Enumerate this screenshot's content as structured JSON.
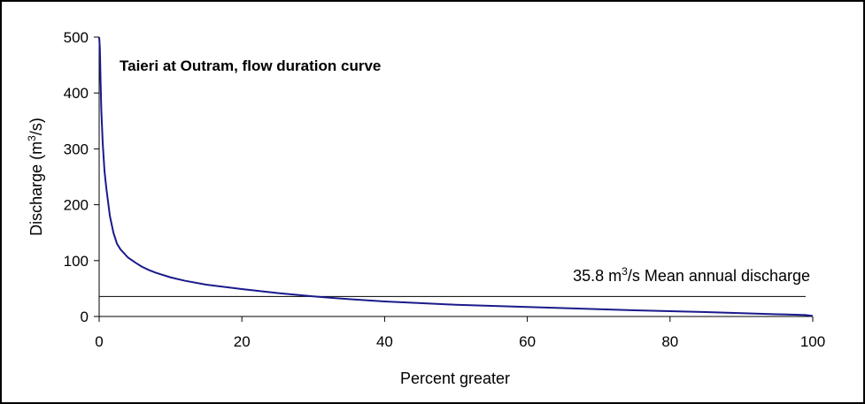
{
  "chart_data": {
    "type": "line",
    "title": "Taieri at Outram, flow duration curve",
    "xlabel": "Percent greater",
    "ylabel": {
      "prefix": "Discharge (m",
      "superscript": "3",
      "suffix": "/s)"
    },
    "xlim": [
      0,
      100
    ],
    "ylim": [
      0,
      500
    ],
    "x_ticks": [
      "0",
      "20",
      "40",
      "60",
      "80",
      "100"
    ],
    "y_ticks": [
      "0",
      "100",
      "200",
      "300",
      "400",
      "500"
    ],
    "grid": false,
    "series": [
      {
        "color": "#1a1a8c",
        "x": [
          0,
          0.1,
          0.2,
          0.3,
          0.5,
          0.75,
          1,
          1.5,
          2,
          2.5,
          3,
          4,
          5,
          6,
          7,
          8,
          10,
          12,
          15,
          20,
          25,
          30,
          35,
          40,
          45,
          50,
          55,
          60,
          65,
          70,
          75,
          80,
          85,
          90,
          95,
          98,
          99,
          100
        ],
        "y": [
          500,
          480,
          420,
          370,
          310,
          260,
          230,
          180,
          150,
          130,
          120,
          106,
          97,
          89,
          83,
          78,
          70,
          64,
          57,
          49,
          42,
          36,
          31,
          27,
          24,
          21,
          19,
          17,
          15,
          13,
          11,
          9.5,
          8,
          6,
          4,
          3,
          2.5,
          1
        ]
      }
    ],
    "reference_line": {
      "y": 35.8,
      "x_start": 0,
      "x_end": 99,
      "color": "#000000",
      "label_value": "35.8 m",
      "label_superscript": "3",
      "label_suffix": "/s Mean annual discharge"
    }
  }
}
